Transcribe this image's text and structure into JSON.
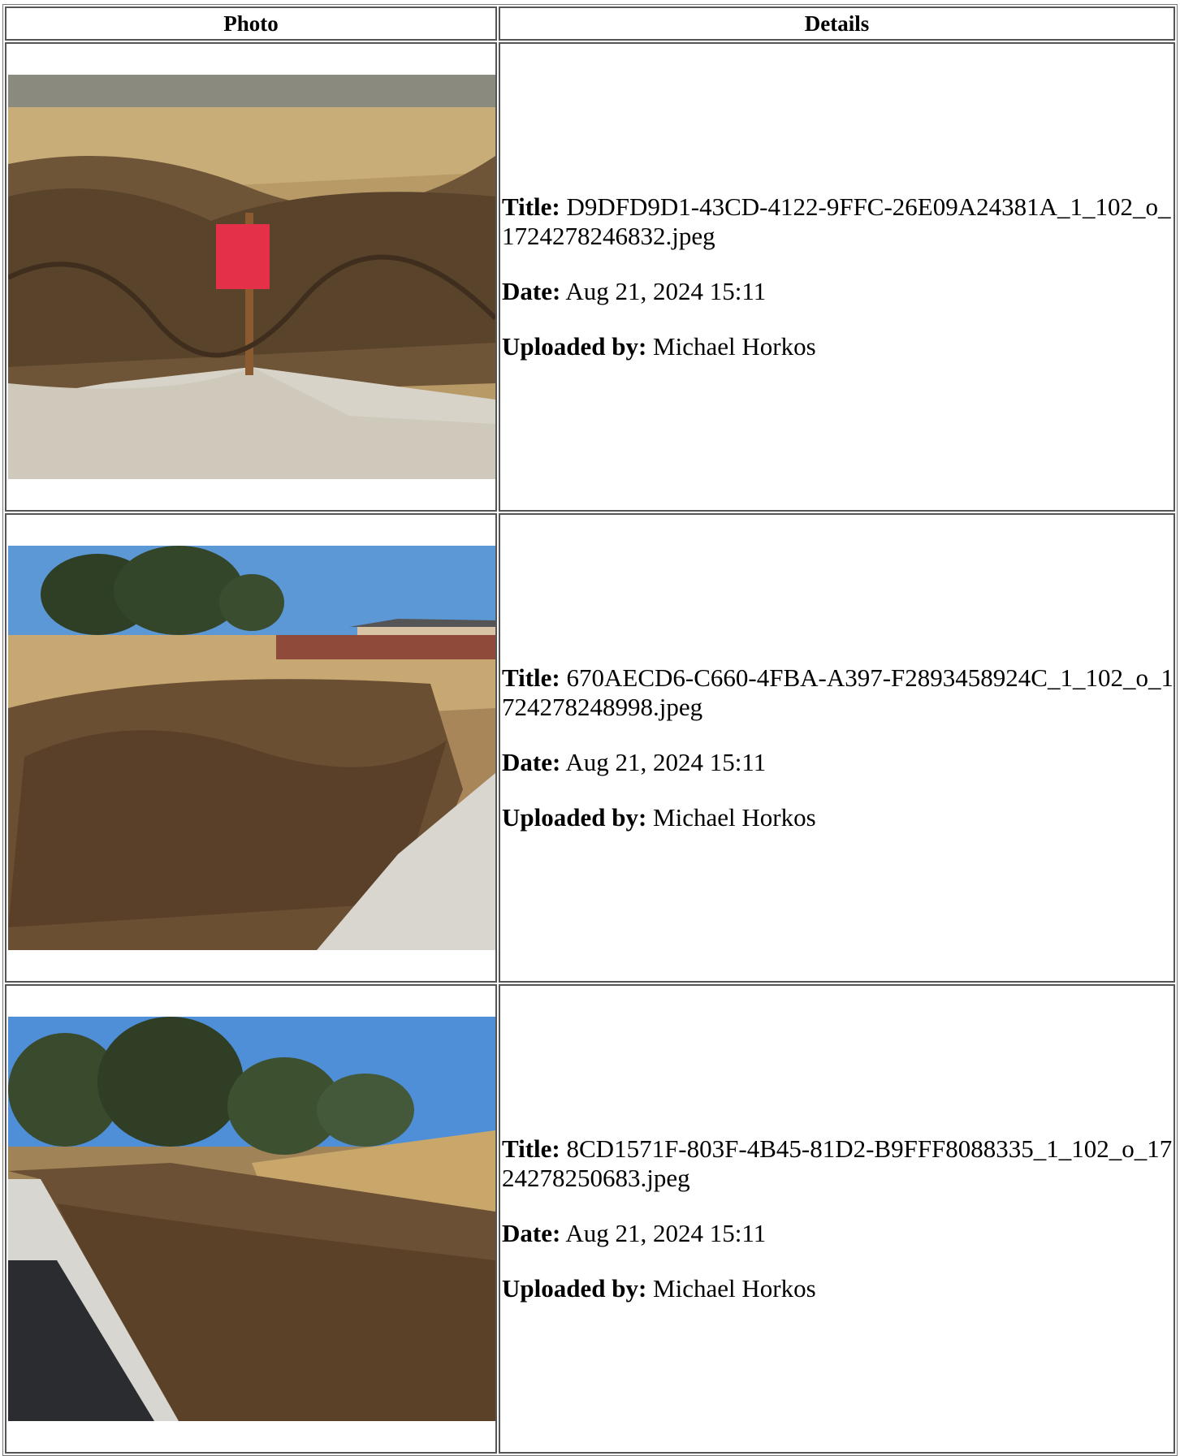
{
  "table": {
    "headers": [
      "Photo",
      "Details"
    ],
    "labels": {
      "title": "Title:",
      "date": "Date:",
      "uploaded_by": "Uploaded by:"
    },
    "rows": [
      {
        "title": "D9DFD9D1-43CD-4122-9FFC-26E09A24381A_1_102_o_1724278246832.jpeg",
        "date": "Aug 21, 2024 15:11",
        "uploaded_by": "Michael Horkos"
      },
      {
        "title": "670AECD6-C660-4FBA-A397-F2893458924C_1_102_o_1724278248998.jpeg",
        "date": "Aug 21, 2024 15:11",
        "uploaded_by": "Michael Horkos"
      },
      {
        "title": "8CD1571F-803F-4B45-81D2-B9FFF8088335_1_102_o_1724278250683.jpeg",
        "date": "Aug 21, 2024 15:11",
        "uploaded_by": "Michael Horkos"
      }
    ]
  }
}
